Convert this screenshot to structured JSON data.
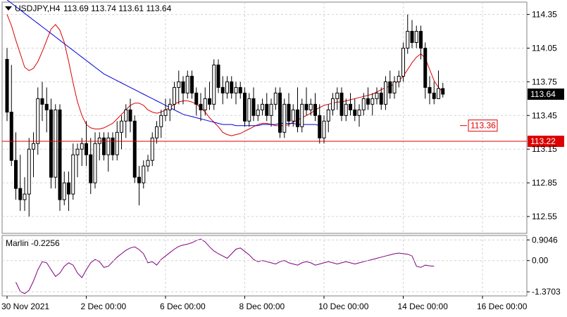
{
  "chart_data": {
    "type": "candlestick",
    "symbol_label": "USDJPY,H4",
    "ohlc_label": "113.69 113.74 113.61 113.64",
    "price_axis": {
      "ylim": [
        112.4,
        114.46
      ],
      "ticks": [
        "114.35",
        "114.05",
        "113.75",
        "113.45",
        "113.15",
        "112.85",
        "112.55"
      ],
      "tick_values": [
        114.35,
        114.05,
        113.75,
        113.45,
        113.15,
        112.85,
        112.55
      ]
    },
    "x_axis": {
      "labels": [
        "30 Nov 2021",
        "2 Dec 00:00",
        "6 Dec 00:00",
        "8 Dec 00:00",
        "10 Dec 00:00",
        "14 Dec 00:00",
        "16 Dec 00:00"
      ],
      "label_bar_index": [
        0,
        18,
        36,
        54,
        72,
        90,
        108
      ]
    },
    "levels": [
      {
        "value": 113.36,
        "label": "113.36",
        "color": "#dd0000",
        "style": "marker"
      },
      {
        "value": 113.22,
        "label": "113.22",
        "color": "#dd0000",
        "style": "line"
      }
    ],
    "current_price": {
      "value": 113.64,
      "label": "113.64"
    },
    "candles": [
      [
        113.95,
        114.05,
        113.4,
        113.48
      ],
      [
        113.48,
        113.9,
        113.0,
        113.05
      ],
      [
        113.05,
        113.3,
        112.7,
        112.8
      ],
      [
        112.8,
        113.1,
        112.6,
        112.7
      ],
      [
        112.7,
        112.9,
        112.6,
        112.75
      ],
      [
        112.75,
        113.25,
        112.55,
        113.15
      ],
      [
        113.15,
        113.3,
        112.9,
        113.2
      ],
      [
        113.2,
        113.7,
        113.1,
        113.6
      ],
      [
        113.6,
        113.75,
        113.4,
        113.55
      ],
      [
        113.55,
        113.7,
        113.3,
        113.5
      ],
      [
        113.5,
        113.6,
        112.8,
        112.9
      ],
      [
        112.9,
        113.55,
        112.8,
        113.5
      ],
      [
        113.5,
        113.55,
        112.6,
        112.7
      ],
      [
        112.7,
        112.95,
        112.65,
        112.85
      ],
      [
        112.85,
        112.95,
        112.6,
        112.75
      ],
      [
        112.75,
        113.2,
        112.7,
        113.1
      ],
      [
        113.1,
        113.2,
        112.9,
        113.15
      ],
      [
        113.15,
        113.25,
        113.0,
        113.2
      ],
      [
        113.2,
        113.4,
        113.0,
        113.1
      ],
      [
        113.1,
        113.25,
        112.75,
        112.85
      ],
      [
        112.85,
        113.3,
        112.8,
        113.2
      ],
      [
        113.2,
        113.3,
        113.05,
        113.25
      ],
      [
        113.25,
        113.3,
        113.05,
        113.1
      ],
      [
        113.1,
        113.3,
        112.95,
        113.25
      ],
      [
        113.25,
        113.3,
        113.05,
        113.1
      ],
      [
        113.1,
        113.4,
        113.05,
        113.3
      ],
      [
        113.3,
        113.45,
        113.15,
        113.4
      ],
      [
        113.4,
        113.55,
        113.25,
        113.5
      ],
      [
        113.5,
        113.6,
        113.3,
        113.4
      ],
      [
        113.4,
        113.45,
        112.85,
        112.9
      ],
      [
        112.9,
        113.0,
        112.65,
        112.85
      ],
      [
        112.85,
        113.05,
        112.8,
        113.0
      ],
      [
        113.0,
        113.1,
        112.95,
        113.05
      ],
      [
        113.05,
        113.3,
        113.0,
        113.25
      ],
      [
        113.25,
        113.4,
        113.2,
        113.35
      ],
      [
        113.35,
        113.5,
        113.25,
        113.45
      ],
      [
        113.45,
        113.6,
        113.4,
        113.5
      ],
      [
        113.5,
        113.6,
        113.4,
        113.55
      ],
      [
        113.55,
        113.75,
        113.5,
        113.7
      ],
      [
        113.7,
        113.85,
        113.55,
        113.75
      ],
      [
        113.75,
        113.8,
        113.55,
        113.65
      ],
      [
        113.65,
        113.85,
        113.6,
        113.8
      ],
      [
        113.8,
        113.85,
        113.6,
        113.65
      ],
      [
        113.65,
        113.7,
        113.45,
        113.55
      ],
      [
        113.55,
        113.65,
        113.4,
        113.5
      ],
      [
        113.5,
        113.7,
        113.45,
        113.6
      ],
      [
        113.6,
        113.75,
        113.5,
        113.55
      ],
      [
        113.55,
        113.95,
        113.5,
        113.9
      ],
      [
        113.9,
        113.95,
        113.65,
        113.7
      ],
      [
        113.7,
        113.8,
        113.55,
        113.65
      ],
      [
        113.65,
        113.8,
        113.6,
        113.75
      ],
      [
        113.75,
        113.8,
        113.6,
        113.65
      ],
      [
        113.65,
        113.75,
        113.55,
        113.7
      ],
      [
        113.7,
        113.75,
        113.6,
        113.65
      ],
      [
        113.65,
        113.7,
        113.35,
        113.4
      ],
      [
        113.4,
        113.65,
        113.35,
        113.6
      ],
      [
        113.6,
        113.7,
        113.4,
        113.45
      ],
      [
        113.45,
        113.55,
        113.4,
        113.5
      ],
      [
        113.5,
        113.6,
        113.45,
        113.55
      ],
      [
        113.55,
        113.65,
        113.4,
        113.45
      ],
      [
        113.45,
        113.6,
        113.35,
        113.55
      ],
      [
        113.55,
        113.7,
        113.5,
        113.65
      ],
      [
        113.65,
        113.7,
        113.25,
        113.3
      ],
      [
        113.3,
        113.6,
        113.25,
        113.55
      ],
      [
        113.55,
        113.65,
        113.35,
        113.4
      ],
      [
        113.4,
        113.55,
        113.35,
        113.5
      ],
      [
        113.5,
        113.7,
        113.3,
        113.35
      ],
      [
        113.35,
        113.6,
        113.3,
        113.55
      ],
      [
        113.55,
        113.7,
        113.45,
        113.5
      ],
      [
        113.5,
        113.6,
        113.45,
        113.55
      ],
      [
        113.55,
        113.65,
        113.4,
        113.45
      ],
      [
        113.45,
        113.55,
        113.2,
        113.25
      ],
      [
        113.25,
        113.45,
        113.2,
        113.4
      ],
      [
        113.4,
        113.55,
        113.3,
        113.5
      ],
      [
        113.5,
        113.65,
        113.45,
        113.6
      ],
      [
        113.6,
        113.7,
        113.5,
        113.65
      ],
      [
        113.65,
        113.7,
        113.4,
        113.45
      ],
      [
        113.45,
        113.6,
        113.4,
        113.55
      ],
      [
        113.55,
        113.65,
        113.45,
        113.5
      ],
      [
        113.5,
        113.6,
        113.4,
        113.45
      ],
      [
        113.45,
        113.55,
        113.35,
        113.5
      ],
      [
        113.5,
        113.65,
        113.45,
        113.6
      ],
      [
        113.6,
        113.7,
        113.5,
        113.55
      ],
      [
        113.55,
        113.65,
        113.45,
        113.6
      ],
      [
        113.6,
        113.7,
        113.55,
        113.65
      ],
      [
        113.65,
        113.7,
        113.5,
        113.55
      ],
      [
        113.55,
        113.8,
        113.5,
        113.75
      ],
      [
        113.75,
        113.85,
        113.6,
        113.65
      ],
      [
        113.65,
        113.8,
        113.6,
        113.75
      ],
      [
        113.75,
        113.85,
        113.7,
        113.8
      ],
      [
        113.8,
        114.1,
        113.75,
        114.05
      ],
      [
        114.05,
        114.35,
        114.0,
        114.2
      ],
      [
        114.2,
        114.3,
        114.05,
        114.1
      ],
      [
        114.1,
        114.25,
        114.05,
        114.2
      ],
      [
        114.2,
        114.25,
        113.95,
        114.05
      ],
      [
        114.05,
        114.1,
        113.6,
        113.7
      ],
      [
        113.7,
        113.8,
        113.55,
        113.65
      ],
      [
        113.65,
        113.75,
        113.55,
        113.6
      ],
      [
        113.6,
        113.85,
        113.6,
        113.69
      ],
      [
        113.69,
        113.74,
        113.61,
        113.64
      ]
    ],
    "series": [
      {
        "name": "",
        "color": "#dd0000",
        "values": [
          114.35,
          114.25,
          114.12,
          114.0,
          113.88,
          113.85,
          113.87,
          113.93,
          114.02,
          114.12,
          114.22,
          114.26,
          114.21,
          114.1,
          113.93,
          113.74,
          113.57,
          113.45,
          113.37,
          113.34,
          113.33,
          113.33,
          113.34,
          113.36,
          113.38,
          113.42,
          113.46,
          113.5,
          113.54,
          113.56,
          113.56,
          113.54,
          113.5,
          113.48,
          113.47,
          113.48,
          113.5,
          113.52,
          113.55,
          113.57,
          113.58,
          113.58,
          113.57,
          113.55,
          113.52,
          113.48,
          113.43,
          113.39,
          113.35,
          113.3,
          113.28,
          113.27,
          113.28,
          113.29,
          113.31,
          113.33,
          113.35,
          113.37,
          113.38,
          113.38,
          113.37,
          113.36,
          113.36,
          113.36,
          113.37,
          113.39,
          113.41,
          113.43,
          113.45,
          113.47,
          113.5,
          113.52,
          113.54,
          113.55,
          113.56,
          113.57,
          113.57,
          113.58,
          113.59,
          113.6,
          113.61,
          113.62,
          113.63,
          113.64,
          113.66,
          113.68,
          113.7,
          113.71,
          113.73,
          113.76,
          113.8,
          113.86,
          113.92,
          113.97,
          114.0,
          113.96,
          113.86,
          113.76,
          113.7,
          113.66
        ]
      },
      {
        "name": "",
        "color": "#0000dd",
        "values": [
          114.48,
          114.45,
          114.42,
          114.39,
          114.36,
          114.33,
          114.3,
          114.27,
          114.24,
          114.21,
          114.18,
          114.15,
          114.12,
          114.09,
          114.06,
          114.03,
          114.0,
          113.97,
          113.94,
          113.91,
          113.88,
          113.85,
          113.82,
          113.8,
          113.78,
          113.76,
          113.74,
          113.72,
          113.7,
          113.68,
          113.66,
          113.64,
          113.62,
          113.6,
          113.58,
          113.56,
          113.54,
          113.52,
          113.5,
          113.48,
          113.46,
          113.45,
          113.44,
          113.43,
          113.42,
          113.41,
          113.4,
          113.39,
          113.38,
          113.37,
          113.37,
          113.37,
          113.36,
          113.36,
          113.36,
          113.36,
          113.36,
          113.36,
          113.37,
          113.37,
          113.37,
          113.37,
          113.38,
          113.38,
          113.38,
          113.38,
          113.37,
          113.37,
          113.37,
          113.37,
          113.37,
          113.36
        ]
      }
    ]
  },
  "indicator": {
    "label": "Marlin -0.2256",
    "ylim": [
      -1.55,
      1.1
    ],
    "ticks": [
      "0.9046",
      "0.00",
      "-1.3703"
    ],
    "tick_values": [
      0.9046,
      0.0,
      -1.3703
    ],
    "color": "#800080",
    "values": [
      -0.95,
      -1.35,
      -1.45,
      -1.3,
      -0.9,
      -0.4,
      -0.05,
      -0.1,
      -0.4,
      -0.7,
      -0.55,
      -0.25,
      -0.1,
      -0.2,
      -0.55,
      -0.75,
      -0.4,
      -0.1,
      0.05,
      -0.05,
      -0.3,
      -0.25,
      -0.05,
      0.15,
      0.3,
      0.45,
      0.55,
      0.6,
      0.48,
      0.3,
      -0.1,
      -0.05,
      -0.2,
      0.05,
      0.2,
      0.35,
      0.5,
      0.62,
      0.68,
      0.72,
      0.78,
      0.88,
      0.94,
      0.82,
      0.6,
      0.42,
      0.3,
      0.2,
      0.1,
      0.3,
      0.5,
      0.55,
      0.4,
      0.25,
      0.05,
      -0.05,
      0.0,
      -0.05,
      -0.1,
      -0.15,
      -0.05,
      0.0,
      -0.1,
      -0.15,
      -0.2,
      -0.1,
      -0.05,
      -0.1,
      -0.2,
      -0.15,
      -0.1,
      -0.05,
      -0.1,
      -0.15,
      -0.1,
      -0.05,
      -0.1,
      -0.15,
      -0.1,
      -0.05,
      0.0,
      0.05,
      0.1,
      0.15,
      0.2,
      0.25,
      0.3,
      0.33,
      0.3,
      0.28,
      0.2,
      -0.25,
      -0.3,
      -0.2,
      -0.23,
      -0.25
    ]
  }
}
